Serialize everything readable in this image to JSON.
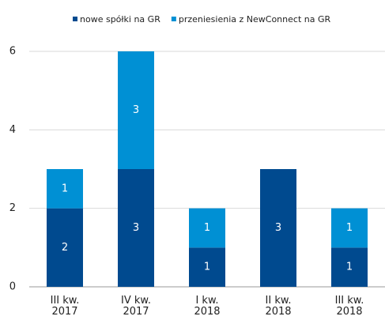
{
  "chart_data": {
    "type": "stacked_bar",
    "categories": [
      "III kw. 2017",
      "IV kw. 2017",
      "I kw. 2018",
      "II kw. 2018",
      "III kw. 2018"
    ],
    "series": [
      {
        "name": "nowe spółki na GR",
        "color": "#004a8f",
        "values": [
          2,
          3,
          1,
          3,
          1
        ]
      },
      {
        "name": "przeniesienia z NewConnect na GR",
        "color": "#0090d4",
        "values": [
          1,
          3,
          1,
          0,
          1
        ]
      }
    ],
    "ylim": [
      0,
      6
    ],
    "yticks": [
      0,
      2,
      4,
      6
    ],
    "grid": true,
    "legend": "top"
  }
}
